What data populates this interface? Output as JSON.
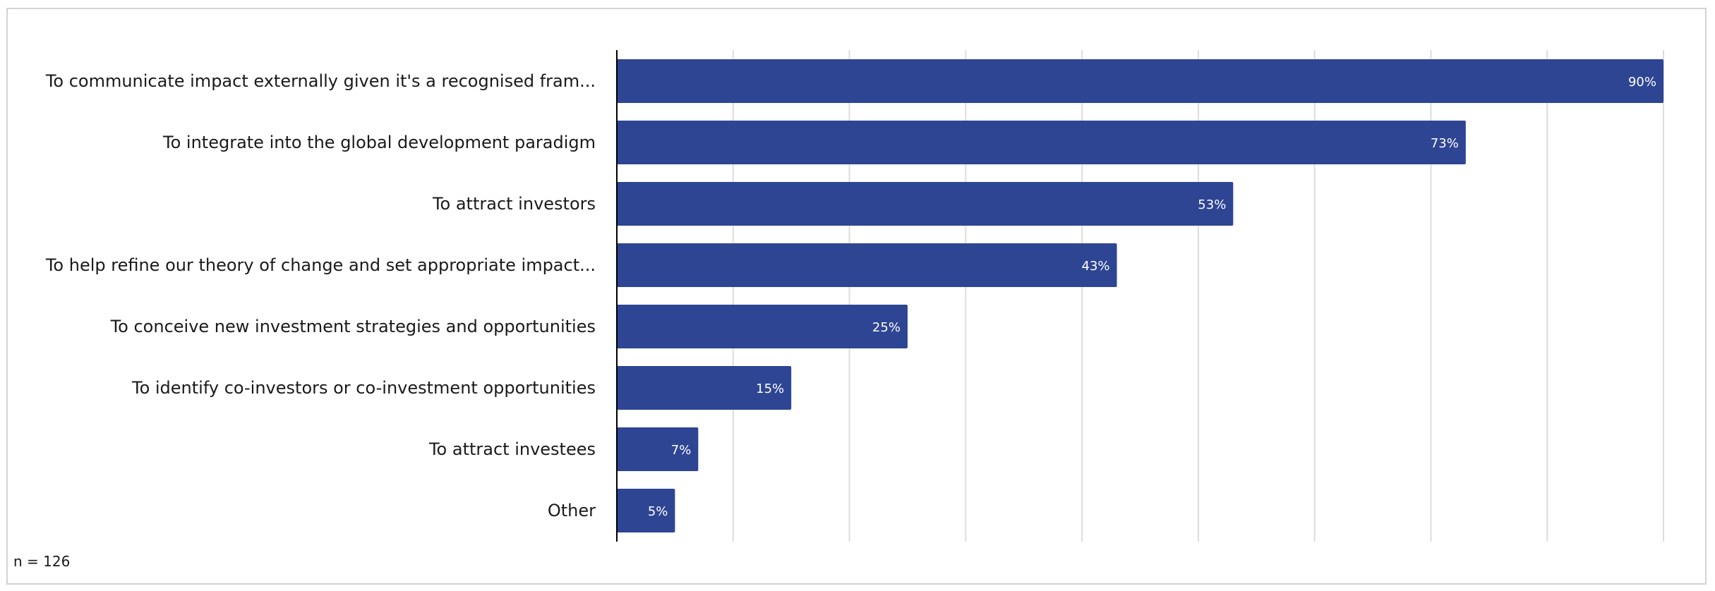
{
  "chart_data": {
    "type": "bar",
    "orientation": "horizontal",
    "categories": [
      "To communicate impact externally given it's a recognised fram...",
      "To integrate into the global development paradigm",
      "To attract investors",
      "To help refine our theory of change and set appropriate impact...",
      "To conceive new investment strategies and opportunities",
      "To identify co-investors or co-investment opportunities",
      "To attract investees",
      "Other"
    ],
    "values": [
      90,
      73,
      53,
      43,
      25,
      15,
      7,
      5
    ],
    "value_labels": [
      "90%",
      "73%",
      "53%",
      "43%",
      "25%",
      "15%",
      "7%",
      "5%"
    ],
    "xlim": [
      0,
      90
    ],
    "grid": true,
    "bar_color": "#2e4594",
    "footnote": "n = 126"
  }
}
